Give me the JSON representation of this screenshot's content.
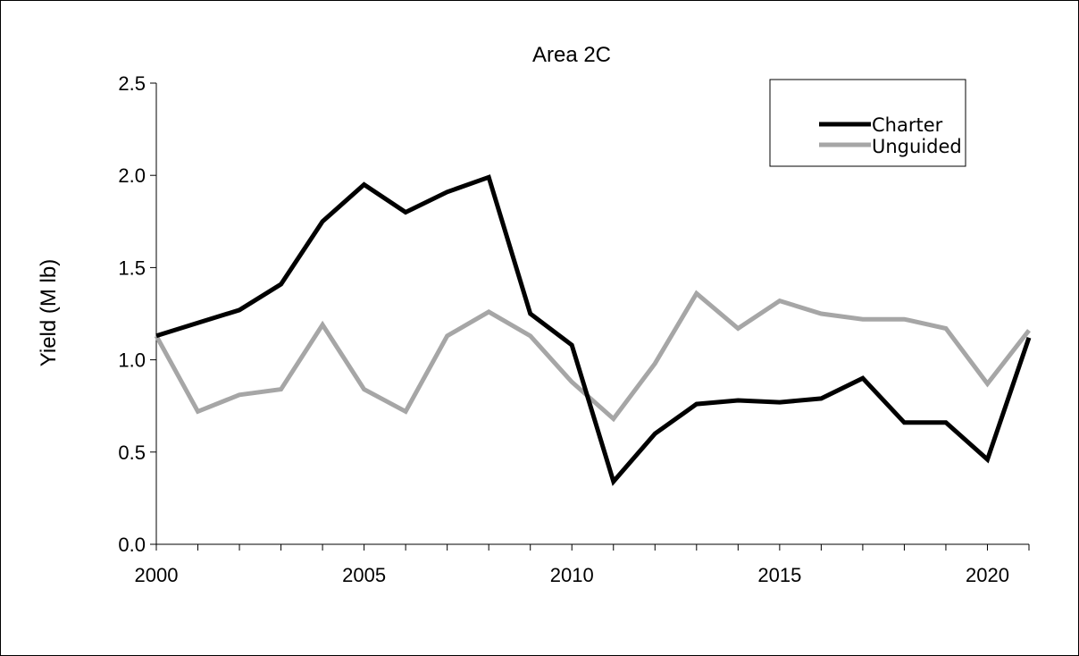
{
  "chart_data": {
    "type": "line",
    "title": "Area 2C",
    "xlabel": "",
    "ylabel": "Yield (M lb)",
    "xlim": [
      2000,
      2021
    ],
    "ylim": [
      0,
      2.5
    ],
    "x_ticks": [
      2000,
      2005,
      2010,
      2015,
      2020
    ],
    "y_ticks": [
      "0.0",
      "0.5",
      "1.0",
      "1.5",
      "2.0",
      "2.5"
    ],
    "grid": false,
    "legend_position": "top-right",
    "x": [
      2000,
      2001,
      2002,
      2003,
      2004,
      2005,
      2006,
      2007,
      2008,
      2009,
      2010,
      2011,
      2012,
      2013,
      2014,
      2015,
      2016,
      2017,
      2018,
      2019,
      2020,
      2021
    ],
    "series": [
      {
        "name": "Charter",
        "color": "#000000",
        "values": [
          1.13,
          1.2,
          1.27,
          1.41,
          1.75,
          1.95,
          1.8,
          1.91,
          1.99,
          1.25,
          1.08,
          0.34,
          0.6,
          0.76,
          0.78,
          0.77,
          0.79,
          0.9,
          0.66,
          0.66,
          0.46,
          1.12
        ]
      },
      {
        "name": "Unguided",
        "color": "#a6a6a6",
        "values": [
          1.13,
          0.72,
          0.81,
          0.84,
          1.19,
          0.84,
          0.72,
          1.13,
          1.26,
          1.13,
          0.88,
          0.68,
          0.98,
          1.36,
          1.17,
          1.32,
          1.25,
          1.22,
          1.22,
          1.17,
          0.87,
          1.16
        ]
      }
    ]
  }
}
